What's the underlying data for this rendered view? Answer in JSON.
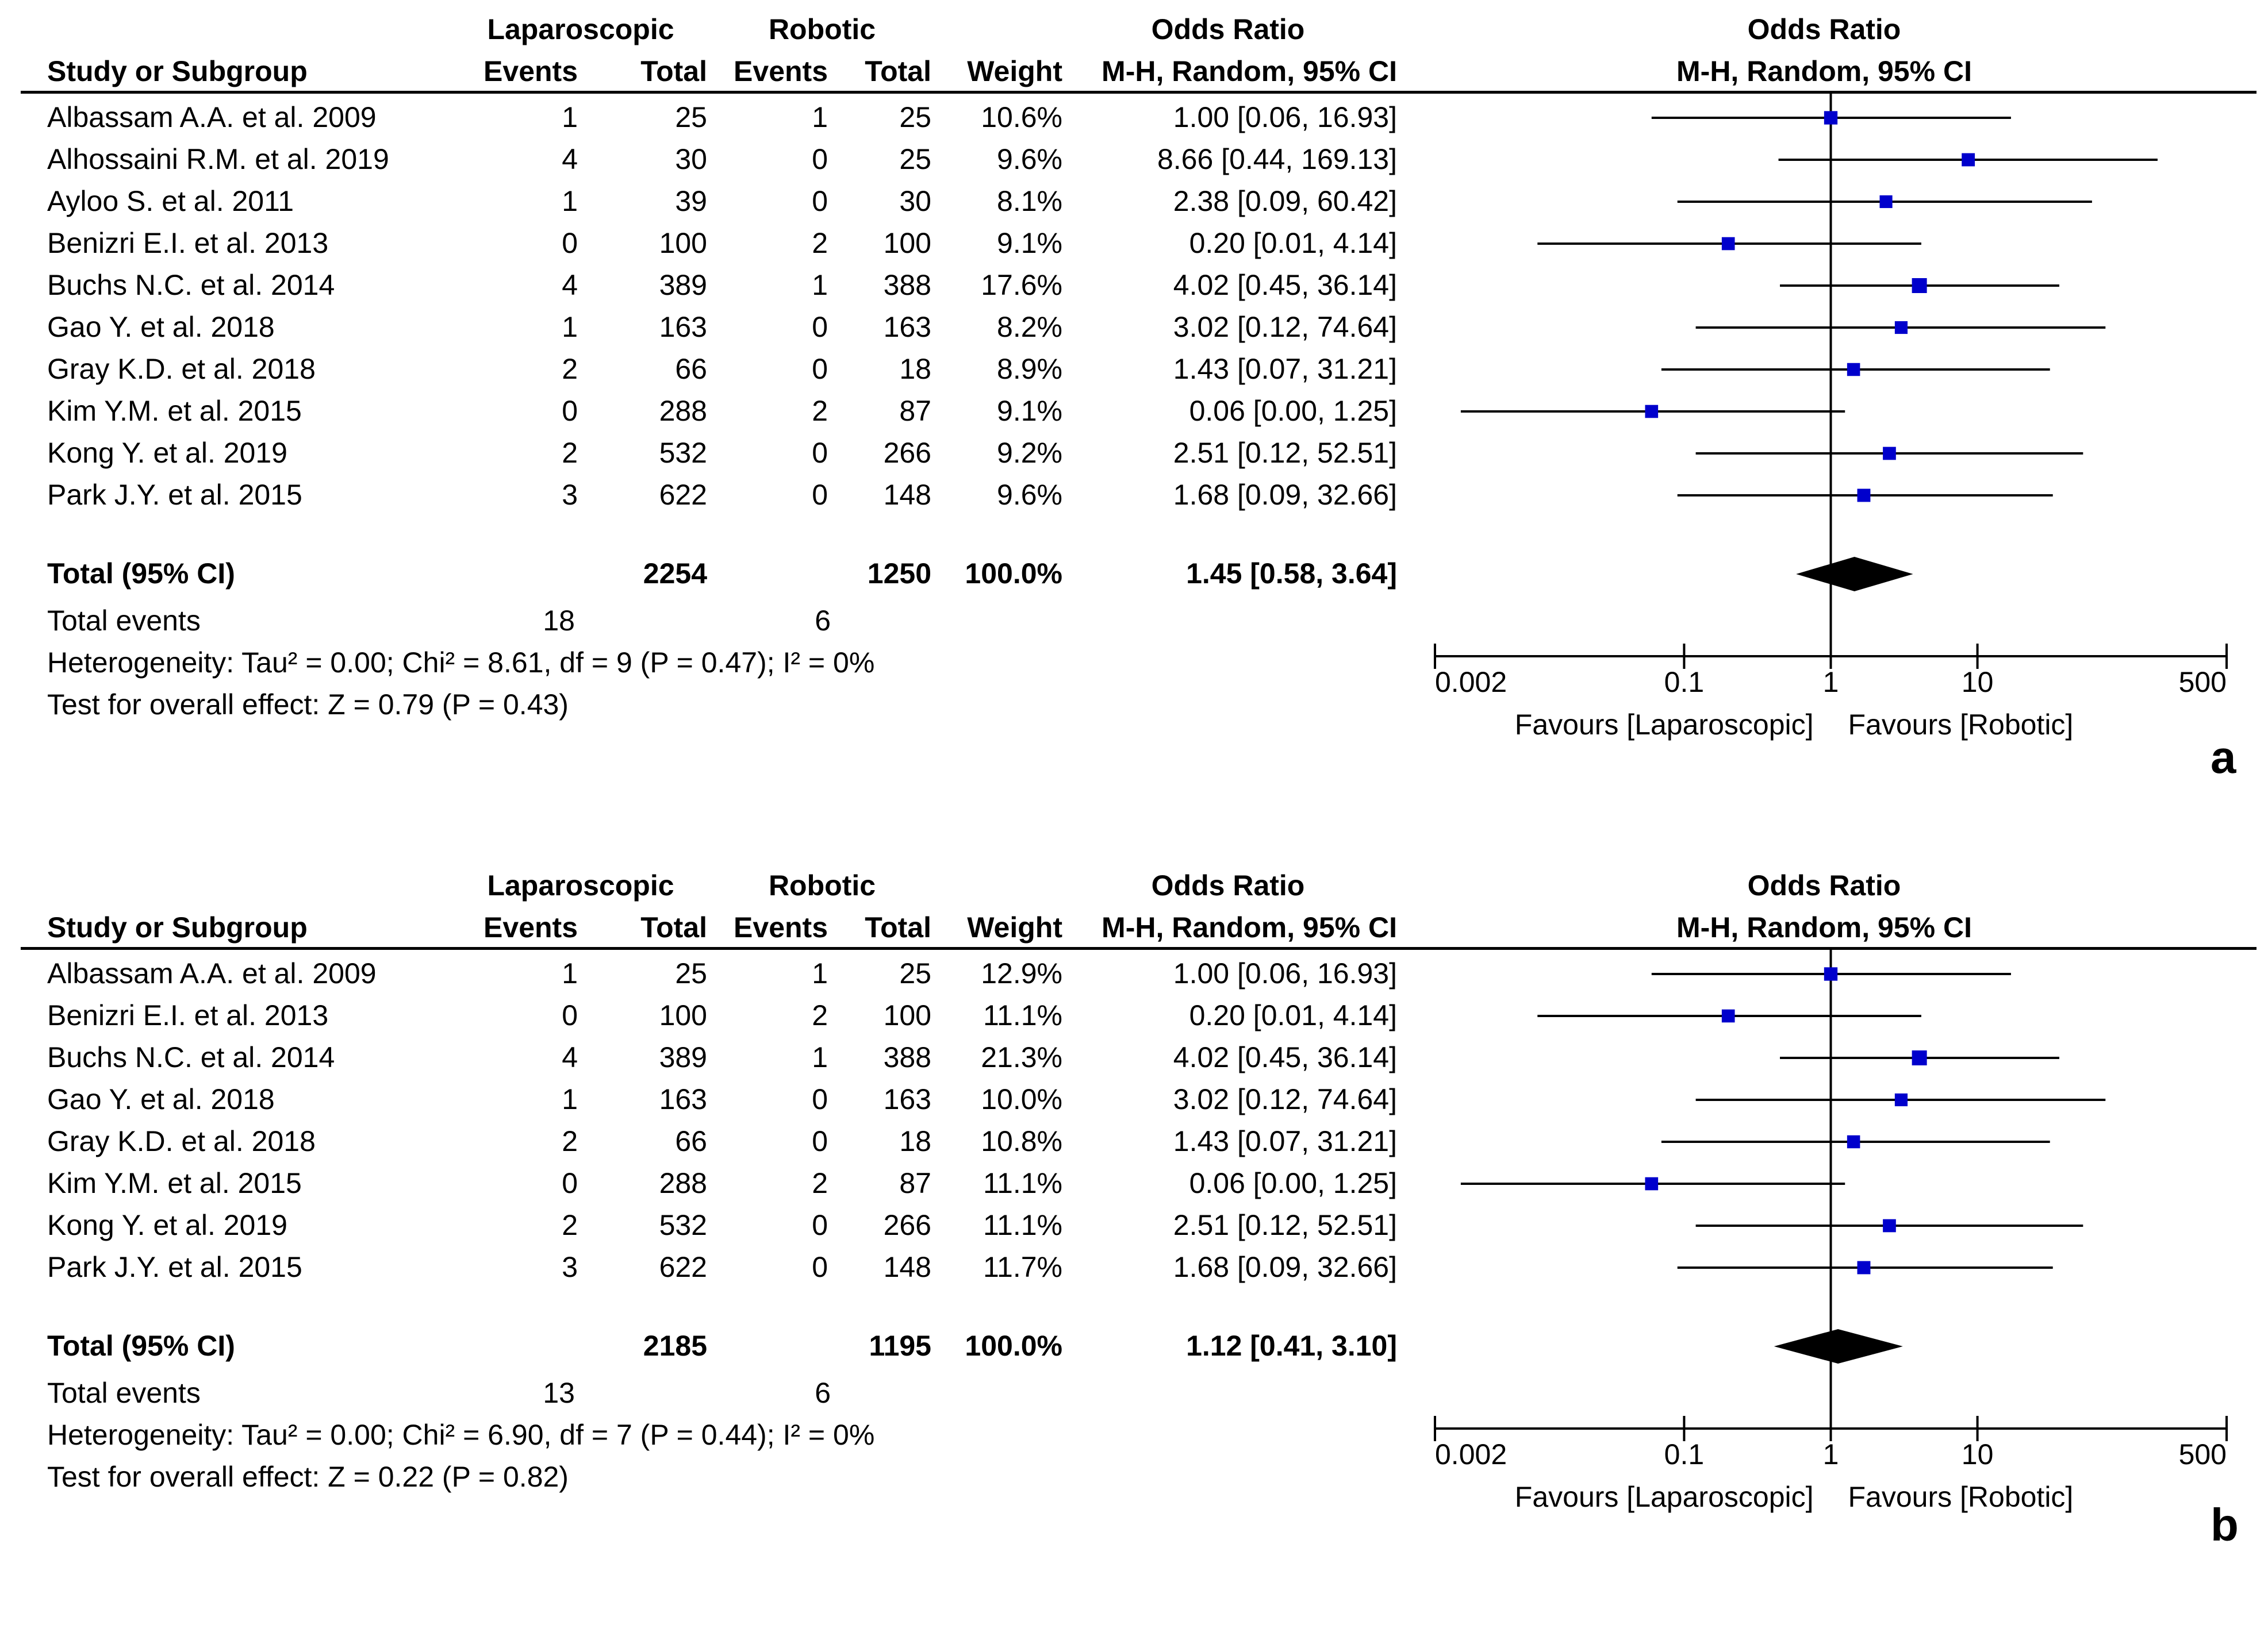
{
  "columns": {
    "study": "Study or Subgroup",
    "group1": "Laparoscopic",
    "group2": "Robotic",
    "events": "Events",
    "total": "Total",
    "weight": "Weight",
    "odds_ratio": "Odds Ratio",
    "method": "M-H, Random, 95% CI"
  },
  "total_label": "Total (95% CI)",
  "events_label": "Total events",
  "axis": {
    "tick_labels": [
      "0.002",
      "0.1",
      "1",
      "10",
      "500"
    ],
    "favours_left": "Favours [Laparoscopic]",
    "favours_right": "Favours [Robotic]"
  },
  "colors": {
    "marker": "#0000CC",
    "line": "#000000"
  },
  "chart_data": [
    {
      "type": "forest",
      "panel": "a",
      "title": "Odds Ratio",
      "xscale": "log",
      "xlim": [
        0.002,
        500
      ],
      "xticks": [
        0.002,
        0.1,
        1,
        10,
        500
      ],
      "studies": [
        {
          "name": "Albassam A.A. et al. 2009",
          "e1": "1",
          "n1": "25",
          "e2": "1",
          "n2": "25",
          "weight": "10.6%",
          "ci_text": "1.00 [0.06, 16.93]",
          "or": 1.0,
          "lo": 0.06,
          "hi": 16.93
        },
        {
          "name": "Alhossaini R.M. et al. 2019",
          "e1": "4",
          "n1": "30",
          "e2": "0",
          "n2": "25",
          "weight": "9.6%",
          "ci_text": "8.66 [0.44, 169.13]",
          "or": 8.66,
          "lo": 0.44,
          "hi": 169.13
        },
        {
          "name": "Ayloo S. et al. 2011",
          "e1": "1",
          "n1": "39",
          "e2": "0",
          "n2": "30",
          "weight": "8.1%",
          "ci_text": "2.38 [0.09, 60.42]",
          "or": 2.38,
          "lo": 0.09,
          "hi": 60.42
        },
        {
          "name": "Benizri E.I. et al. 2013",
          "e1": "0",
          "n1": "100",
          "e2": "2",
          "n2": "100",
          "weight": "9.1%",
          "ci_text": "0.20 [0.01, 4.14]",
          "or": 0.2,
          "lo": 0.01,
          "hi": 4.14
        },
        {
          "name": "Buchs N.C. et al. 2014",
          "e1": "4",
          "n1": "389",
          "e2": "1",
          "n2": "388",
          "weight": "17.6%",
          "ci_text": "4.02 [0.45, 36.14]",
          "or": 4.02,
          "lo": 0.45,
          "hi": 36.14
        },
        {
          "name": "Gao Y. et al. 2018",
          "e1": "1",
          "n1": "163",
          "e2": "0",
          "n2": "163",
          "weight": "8.2%",
          "ci_text": "3.02 [0.12, 74.64]",
          "or": 3.02,
          "lo": 0.12,
          "hi": 74.64
        },
        {
          "name": "Gray K.D. et al. 2018",
          "e1": "2",
          "n1": "66",
          "e2": "0",
          "n2": "18",
          "weight": "8.9%",
          "ci_text": "1.43 [0.07, 31.21]",
          "or": 1.43,
          "lo": 0.07,
          "hi": 31.21
        },
        {
          "name": "Kim Y.M. et al. 2015",
          "e1": "0",
          "n1": "288",
          "e2": "2",
          "n2": "87",
          "weight": "9.1%",
          "ci_text": "0.06 [0.00, 1.25]",
          "or": 0.06,
          "lo": 0.003,
          "hi": 1.25
        },
        {
          "name": "Kong Y. et al. 2019",
          "e1": "2",
          "n1": "532",
          "e2": "0",
          "n2": "266",
          "weight": "9.2%",
          "ci_text": "2.51 [0.12, 52.51]",
          "or": 2.51,
          "lo": 0.12,
          "hi": 52.51
        },
        {
          "name": "Park J.Y. et al. 2015",
          "e1": "3",
          "n1": "622",
          "e2": "0",
          "n2": "148",
          "weight": "9.6%",
          "ci_text": "1.68 [0.09, 32.66]",
          "or": 1.68,
          "lo": 0.09,
          "hi": 32.66
        }
      ],
      "total": {
        "n1": "2254",
        "n2": "1250",
        "weight": "100.0%",
        "ci_text": "1.45 [0.58, 3.64]",
        "or": 1.45,
        "lo": 0.58,
        "hi": 3.64
      },
      "total_events": {
        "e1": "18",
        "e2": "6"
      },
      "heterogeneity": "Heterogeneity: Tau² = 0.00; Chi² = 8.61, df = 9 (P = 0.47); I² = 0%",
      "overall_effect": "Test for overall effect: Z = 0.79 (P = 0.43)"
    },
    {
      "type": "forest",
      "panel": "b",
      "title": "Odds Ratio",
      "xscale": "log",
      "xlim": [
        0.002,
        500
      ],
      "xticks": [
        0.002,
        0.1,
        1,
        10,
        500
      ],
      "studies": [
        {
          "name": "Albassam A.A. et al. 2009",
          "e1": "1",
          "n1": "25",
          "e2": "1",
          "n2": "25",
          "weight": "12.9%",
          "ci_text": "1.00 [0.06, 16.93]",
          "or": 1.0,
          "lo": 0.06,
          "hi": 16.93
        },
        {
          "name": "Benizri E.I. et al. 2013",
          "e1": "0",
          "n1": "100",
          "e2": "2",
          "n2": "100",
          "weight": "11.1%",
          "ci_text": "0.20 [0.01, 4.14]",
          "or": 0.2,
          "lo": 0.01,
          "hi": 4.14
        },
        {
          "name": "Buchs N.C. et al. 2014",
          "e1": "4",
          "n1": "389",
          "e2": "1",
          "n2": "388",
          "weight": "21.3%",
          "ci_text": "4.02 [0.45, 36.14]",
          "or": 4.02,
          "lo": 0.45,
          "hi": 36.14
        },
        {
          "name": "Gao Y. et al. 2018",
          "e1": "1",
          "n1": "163",
          "e2": "0",
          "n2": "163",
          "weight": "10.0%",
          "ci_text": "3.02 [0.12, 74.64]",
          "or": 3.02,
          "lo": 0.12,
          "hi": 74.64
        },
        {
          "name": "Gray K.D. et al. 2018",
          "e1": "2",
          "n1": "66",
          "e2": "0",
          "n2": "18",
          "weight": "10.8%",
          "ci_text": "1.43 [0.07, 31.21]",
          "or": 1.43,
          "lo": 0.07,
          "hi": 31.21
        },
        {
          "name": "Kim Y.M. et al. 2015",
          "e1": "0",
          "n1": "288",
          "e2": "2",
          "n2": "87",
          "weight": "11.1%",
          "ci_text": "0.06 [0.00, 1.25]",
          "or": 0.06,
          "lo": 0.003,
          "hi": 1.25
        },
        {
          "name": "Kong Y. et al. 2019",
          "e1": "2",
          "n1": "532",
          "e2": "0",
          "n2": "266",
          "weight": "11.1%",
          "ci_text": "2.51 [0.12, 52.51]",
          "or": 2.51,
          "lo": 0.12,
          "hi": 52.51
        },
        {
          "name": "Park J.Y. et al. 2015",
          "e1": "3",
          "n1": "622",
          "e2": "0",
          "n2": "148",
          "weight": "11.7%",
          "ci_text": "1.68 [0.09, 32.66]",
          "or": 1.68,
          "lo": 0.09,
          "hi": 32.66
        }
      ],
      "total": {
        "n1": "2185",
        "n2": "1195",
        "weight": "100.0%",
        "ci_text": "1.12 [0.41, 3.10]",
        "or": 1.12,
        "lo": 0.41,
        "hi": 3.1
      },
      "total_events": {
        "e1": "13",
        "e2": "6"
      },
      "heterogeneity": "Heterogeneity: Tau² = 0.00; Chi² = 6.90, df = 7 (P = 0.44); I² = 0%",
      "overall_effect": "Test for overall effect: Z = 0.22 (P = 0.82)"
    }
  ]
}
